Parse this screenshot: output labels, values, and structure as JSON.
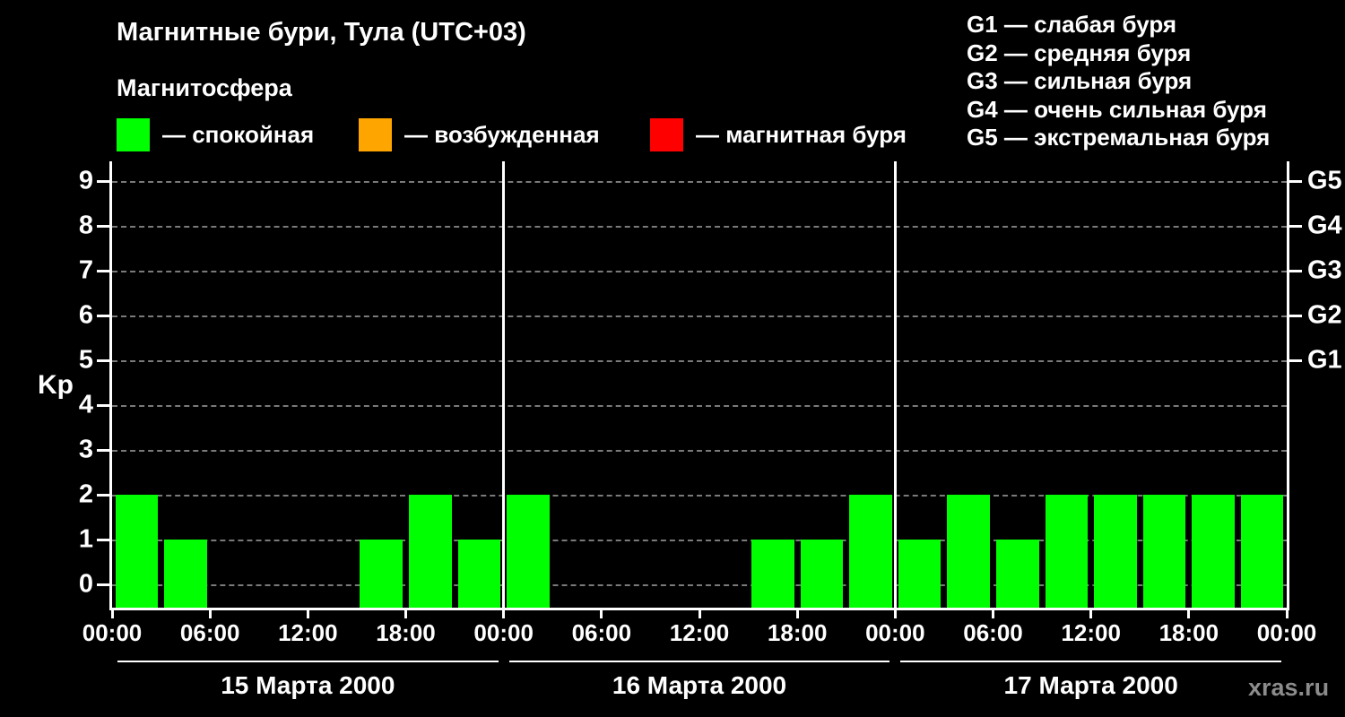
{
  "title": "Магнитные бури, Тула (UTC+03)",
  "subtitle": "Магнитосфера",
  "watermark": "xras.ru",
  "legend": [
    {
      "key": "quiet",
      "label": "— спокойная",
      "color": "#00ff00"
    },
    {
      "key": "active",
      "label": "— возбужденная",
      "color": "#ffa500"
    },
    {
      "key": "storm",
      "label": "— магнитная буря",
      "color": "#ff0000"
    }
  ],
  "storm_scale": [
    "G1 — слабая буря",
    "G2 — средняя буря",
    "G3 — сильная буря",
    "G4 — очень сильная буря",
    "G5 — экстремальная буря"
  ],
  "chart_data": {
    "type": "bar",
    "title": "Магнитные бури, Тула (UTC+03)",
    "ylabel": "Kp",
    "ylim": [
      0,
      9
    ],
    "yticks": [
      0,
      1,
      2,
      3,
      4,
      5,
      6,
      7,
      8,
      9
    ],
    "grid": true,
    "interval_hours": 3,
    "right_axis_labels": [
      {
        "label": "G1",
        "kp": 5
      },
      {
        "label": "G2",
        "kp": 6
      },
      {
        "label": "G3",
        "kp": 7
      },
      {
        "label": "G4",
        "kp": 8
      },
      {
        "label": "G5",
        "kp": 9
      }
    ],
    "x_tick_labels": [
      "00:00",
      "06:00",
      "12:00",
      "18:00",
      "00:00",
      "06:00",
      "12:00",
      "18:00",
      "00:00",
      "06:00",
      "12:00",
      "18:00",
      "00:00"
    ],
    "days": [
      {
        "date": "15 Марта 2000",
        "values": [
          2,
          1,
          0,
          0,
          0,
          1,
          2,
          1
        ]
      },
      {
        "date": "16 Марта 2000",
        "values": [
          2,
          0,
          0,
          0,
          0,
          1,
          1,
          2
        ]
      },
      {
        "date": "17 Марта 2000",
        "values": [
          1,
          2,
          1,
          2,
          2,
          2,
          2,
          2
        ]
      }
    ],
    "colors": {
      "quiet": "#00ff00",
      "active": "#ffa500",
      "storm": "#ff0000"
    },
    "thresholds": {
      "active_min_kp": 4,
      "storm_min_kp": 5
    },
    "legend_position": "top"
  }
}
